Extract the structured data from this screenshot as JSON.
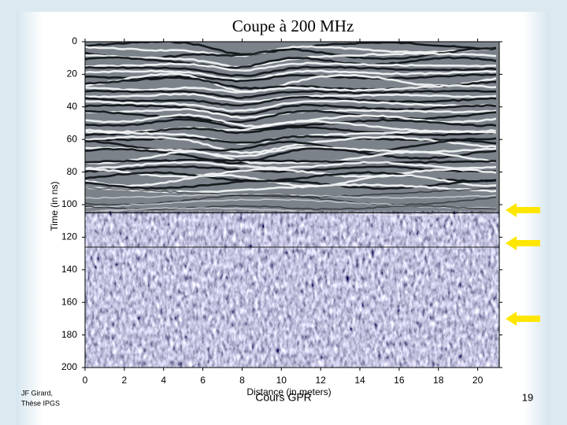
{
  "chart_data": {
    "type": "image",
    "title": "Coupe à 200 MHz",
    "x_label": "Distance (in meters)",
    "y_label": "Time (in ns)",
    "xlim": [
      0,
      21.1
    ],
    "ylim": [
      200,
      0
    ],
    "xticks": [
      0,
      2,
      4,
      6,
      8,
      10,
      12,
      14,
      16,
      18,
      20
    ],
    "yticks": [
      0,
      20,
      40,
      60,
      80,
      100,
      120,
      140,
      160,
      180,
      200
    ]
  },
  "footer": {
    "author": [
      "JF Girard,",
      "Thèse IPGS"
    ],
    "course": "Cours GPR",
    "page": "19"
  }
}
